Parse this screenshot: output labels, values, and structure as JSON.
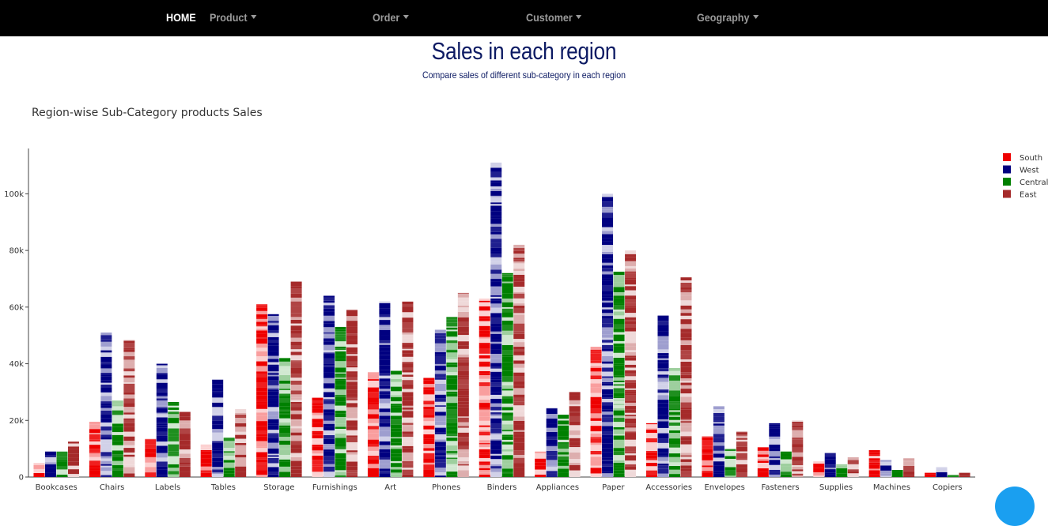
{
  "nav": {
    "home": "HOME",
    "product": "Product",
    "order": "Order",
    "customer": "Customer",
    "geography": "Geography"
  },
  "header": {
    "title": "Sales in each region",
    "subtitle": "Compare sales of different sub-category in each region"
  },
  "chart_data": {
    "type": "bar",
    "title": "Region-wise Sub-Category products Sales",
    "xlabel": "",
    "ylabel": "",
    "ylim": [
      0,
      116000
    ],
    "y_ticks": [
      0,
      20000,
      40000,
      60000,
      80000,
      100000
    ],
    "y_tick_labels": [
      "0",
      "20k",
      "40k",
      "60k",
      "80k",
      "100k"
    ],
    "grid": false,
    "legend_position": "top-right",
    "categories": [
      "Bookcases",
      "Chairs",
      "Labels",
      "Tables",
      "Storage",
      "Furnishings",
      "Art",
      "Phones",
      "Binders",
      "Appliances",
      "Paper",
      "Accessories",
      "Envelopes",
      "Fasteners",
      "Supplies",
      "Machines",
      "Copiers"
    ],
    "series": [
      {
        "name": "South",
        "color": "#ee0000",
        "values": [
          5000,
          19500,
          13500,
          11500,
          61000,
          28000,
          37000,
          35000,
          63000,
          9000,
          46000,
          19000,
          14500,
          10500,
          5500,
          9500,
          1500
        ]
      },
      {
        "name": "West",
        "color": "#000080",
        "values": [
          9000,
          51000,
          40000,
          34500,
          57500,
          64000,
          62000,
          52000,
          111000,
          24500,
          100000,
          57000,
          25000,
          19000,
          8500,
          6000,
          3500
        ]
      },
      {
        "name": "Central",
        "color": "#008000",
        "values": [
          9000,
          27000,
          26500,
          14000,
          42000,
          53000,
          37500,
          56500,
          72000,
          22000,
          72500,
          38500,
          10000,
          9000,
          4500,
          2500,
          700
        ]
      },
      {
        "name": "East",
        "color": "#a52a2a",
        "values": [
          12500,
          48500,
          23000,
          24000,
          69000,
          59000,
          62000,
          65000,
          82000,
          30000,
          80000,
          70500,
          16000,
          20000,
          7000,
          6500,
          1500
        ]
      }
    ]
  }
}
